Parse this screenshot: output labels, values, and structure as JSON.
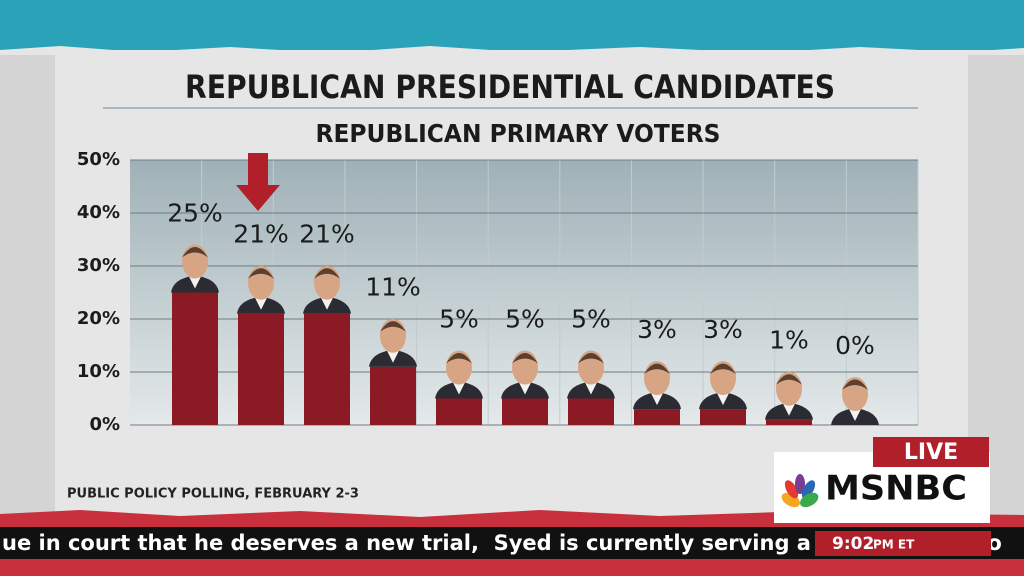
{
  "chart_data": {
    "type": "bar",
    "title": "REPUBLICAN PRESIDENTIAL CANDIDATES",
    "subtitle": "REPUBLICAN PRIMARY VOTERS",
    "categories": [
      null,
      null,
      null,
      null,
      null,
      null,
      null,
      null,
      null,
      null,
      null
    ],
    "values": [
      25,
      21,
      21,
      11,
      5,
      5,
      5,
      3,
      3,
      1,
      0
    ],
    "value_labels": [
      "25%",
      "21%",
      "21%",
      "11%",
      "5%",
      "5%",
      "5%",
      "3%",
      "3%",
      "1%",
      "0%"
    ],
    "color": "#8b1a24",
    "ylim": [
      0,
      50
    ],
    "yticks": [
      {
        "value": 0,
        "label": "0%"
      },
      {
        "value": 10,
        "label": "10%"
      },
      {
        "value": 20,
        "label": "20%"
      },
      {
        "value": 30,
        "label": "30%"
      },
      {
        "value": 40,
        "label": "40%"
      },
      {
        "value": 50,
        "label": "50%"
      }
    ],
    "grid": true,
    "source": "PUBLIC POLICY POLLING, FEBRUARY 2-3"
  },
  "broadcast": {
    "live": "LIVE",
    "network": "MSNBC",
    "ticker": "ue in court that he deserves a new trial,  Syed is currently serving a life sentence fo",
    "time": "9:02",
    "time_suffix": "PM ET"
  }
}
